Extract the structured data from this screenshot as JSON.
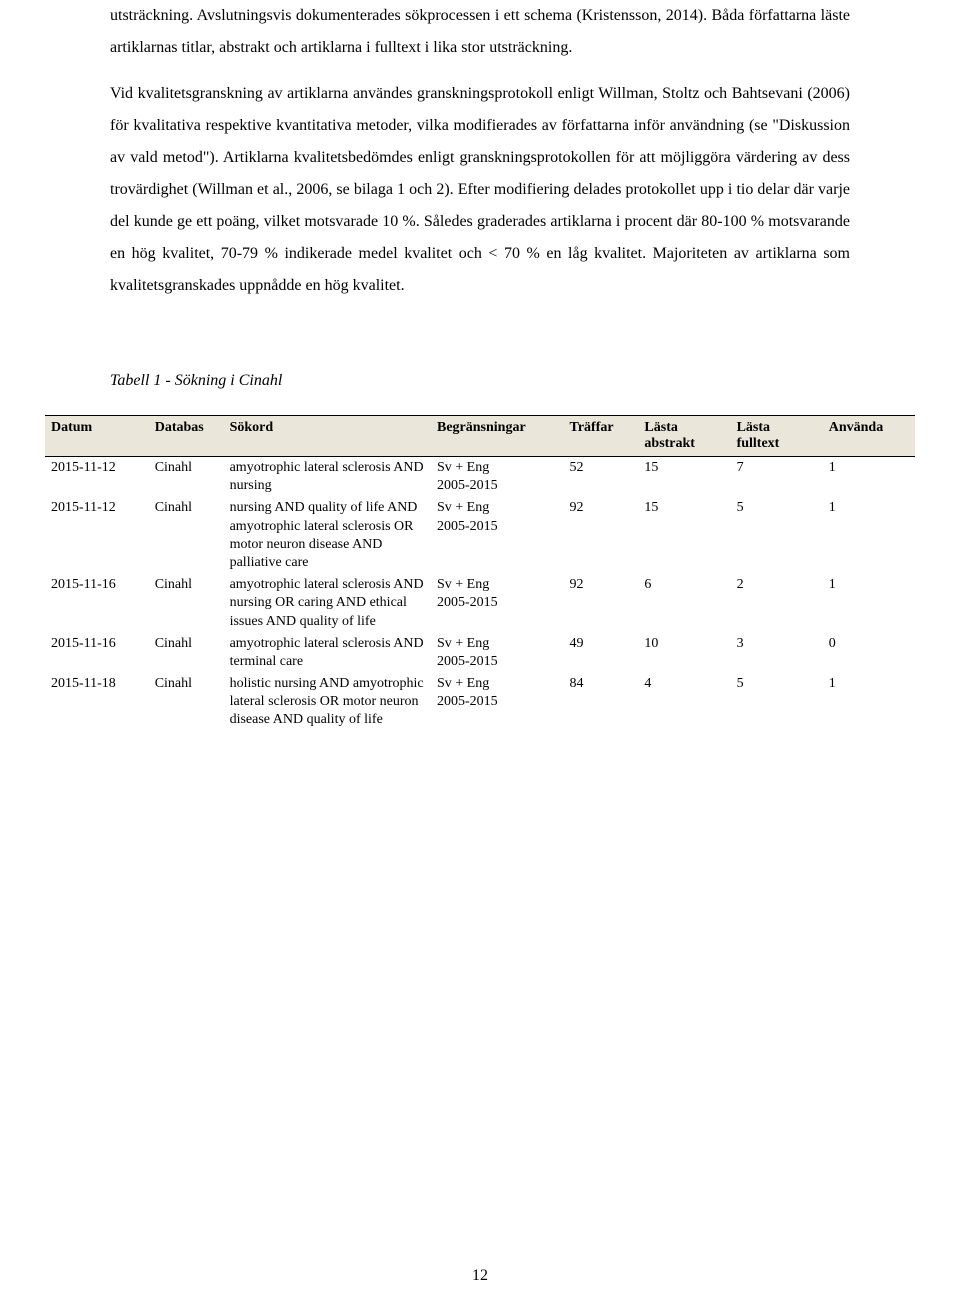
{
  "paragraphs": {
    "p1": "utsträckning. Avslutningsvis dokumenterades sökprocessen i ett schema (Kristensson, 2014). Båda författarna läste artiklarnas titlar, abstrakt och artiklarna i fulltext i lika stor utsträckning.",
    "p2": "Vid kvalitetsgranskning av artiklarna användes granskningsprotokoll enligt Willman, Stoltz och Bahtsevani (2006) för kvalitativa respektive kvantitativa metoder, vilka modifierades av författarna inför användning (se \"Diskussion av vald metod\"). Artiklarna kvalitetsbedömdes enligt granskningsprotokollen för att möjliggöra värdering av dess trovärdighet (Willman et al., 2006, se bilaga 1 och 2). Efter modifiering delades protokollet upp i tio delar där varje del kunde ge ett poäng, vilket motsvarade 10 %. Således graderades artiklarna i procent där 80-100 % motsvarande en hög kvalitet, 70-79 % indikerade medel kvalitet och < 70 % en låg kvalitet. Majoriteten av artiklarna som kvalitetsgranskades uppnådde en hög kvalitet."
  },
  "table": {
    "caption": "Tabell 1 - Sökning i Cinahl",
    "columns": {
      "c0": "Datum",
      "c1": "Databas",
      "c2": "Sökord",
      "c3": "Begränsningar",
      "c4": "Träffar",
      "c5a": "Lästa",
      "c5b": "abstrakt",
      "c6a": "Lästa",
      "c6b": "fulltext",
      "c7": "Använda"
    },
    "col_widths": [
      "90",
      "65",
      "180",
      "115",
      "65",
      "80",
      "80",
      "80"
    ],
    "header_bg": "#eae6da",
    "rows": [
      {
        "datum": "2015-11-12",
        "databas": "Cinahl",
        "sokord": "amyotrophic lateral sclerosis AND nursing",
        "begr": "Sv + Eng\n2005-2015",
        "traffar": "52",
        "abstrakt": "15",
        "fulltext": "7",
        "anvanda": "1"
      },
      {
        "datum": "2015-11-12",
        "databas": "Cinahl",
        "sokord": "nursing AND quality of life AND amyotrophic lateral sclerosis OR motor neuron disease AND palliative care",
        "begr": "Sv + Eng\n2005-2015",
        "traffar": "92",
        "abstrakt": "15",
        "fulltext": "5",
        "anvanda": "1"
      },
      {
        "datum": "2015-11-16",
        "databas": "Cinahl",
        "sokord": "amyotrophic lateral sclerosis AND nursing OR caring AND ethical issues AND quality of life",
        "begr": "Sv + Eng\n2005-2015",
        "traffar": "92",
        "abstrakt": "6",
        "fulltext": "2",
        "anvanda": "1"
      },
      {
        "datum": "2015-11-16",
        "databas": "Cinahl",
        "sokord": "amyotrophic lateral sclerosis AND terminal care",
        "begr": "Sv + Eng\n2005-2015",
        "traffar": "49",
        "abstrakt": "10",
        "fulltext": "3",
        "anvanda": "0"
      },
      {
        "datum": "2015-11-18",
        "databas": "Cinahl",
        "sokord": "holistic nursing AND amyotrophic lateral sclerosis OR motor neuron disease AND quality of life",
        "begr": "Sv + Eng\n2005-2015",
        "traffar": "84",
        "abstrakt": "4",
        "fulltext": "5",
        "anvanda": "1"
      }
    ]
  },
  "page_number": "12"
}
